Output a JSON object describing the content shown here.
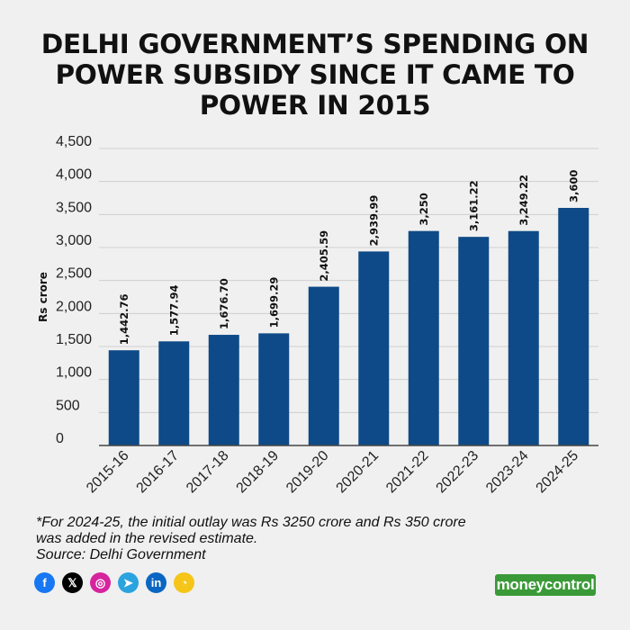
{
  "title": {
    "line1": "DELHI GOVERNMENT’S SPENDING ON",
    "line2": "POWER SUBSIDY SINCE IT CAME TO",
    "line3": "POWER IN 2015"
  },
  "chart_data": {
    "type": "bar",
    "title": "DELHI GOVERNMENT’S SPENDING ON POWER SUBSIDY SINCE IT CAME TO POWER IN 2015",
    "xlabel": "",
    "ylabel": "Rs crore",
    "ylim": [
      0,
      4500
    ],
    "yticks": [
      0,
      500,
      1000,
      1500,
      2000,
      2500,
      3000,
      3500,
      4000,
      4500
    ],
    "ytick_labels": [
      "0",
      "500",
      "1,000",
      "1,500",
      "2,000",
      "2,500",
      "3,000",
      "3,500",
      "4,000",
      "4,500"
    ],
    "grid": true,
    "bar_color": "#0e4a87",
    "categories": [
      "2015-16",
      "2016-17",
      "2017-18",
      "2018-19",
      "2019-20",
      "2020-21",
      "2021-22",
      "2022-23",
      "2023-24",
      "2024-25"
    ],
    "values": [
      1442.76,
      1577.94,
      1676.7,
      1699.29,
      2405.59,
      2939.99,
      3250,
      3161.22,
      3249.22,
      3600
    ],
    "value_labels": [
      "1,442.76",
      "1,577.94",
      "1,676.70",
      "1,699.29",
      "2,405.59",
      "2,939.99",
      "3,250",
      "3,161.22",
      "3,249.22",
      "3,600"
    ]
  },
  "footnote": {
    "line1": "*For 2024-25, the initial outlay was Rs 3250 crore and Rs 350 crore",
    "line2": "was added in the revised estimate.",
    "source": "Source: Delhi Government"
  },
  "social": [
    {
      "name": "facebook",
      "glyph": "f",
      "color": "#1877f2"
    },
    {
      "name": "x",
      "glyph": "𝕏",
      "color": "#000000"
    },
    {
      "name": "instagram",
      "glyph": "◎",
      "color": "#d6249f"
    },
    {
      "name": "telegram",
      "glyph": "➤",
      "color": "#2aa3df"
    },
    {
      "name": "linkedin",
      "glyph": "in",
      "color": "#0a66c2"
    },
    {
      "name": "koo",
      "glyph": "◔",
      "color": "#f5c518"
    }
  ],
  "brand": {
    "logo_text": "moneycontrol",
    "color": "#3a9a37"
  }
}
